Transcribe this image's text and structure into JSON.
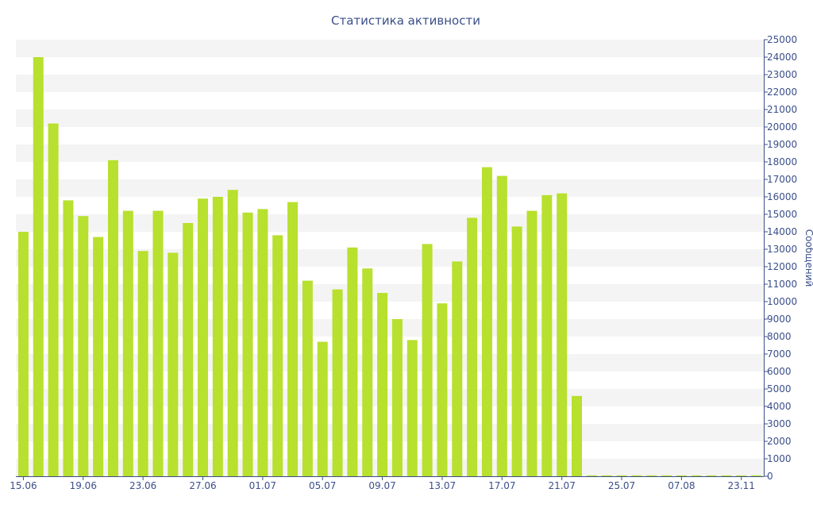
{
  "chart_data": {
    "type": "bar",
    "title": "Статистика активности",
    "xlabel": "",
    "ylabel": "Сообщений",
    "ylim": [
      0,
      25000
    ],
    "yticks": [
      0,
      1000,
      2000,
      3000,
      4000,
      5000,
      6000,
      7000,
      8000,
      9000,
      10000,
      11000,
      12000,
      13000,
      14000,
      15000,
      16000,
      17000,
      18000,
      19000,
      20000,
      21000,
      22000,
      23000,
      24000,
      25000
    ],
    "grid": "horizontal-bands",
    "y_axis_position": "right",
    "bar_color": "#b8e02e",
    "band_color": "#f4f4f4",
    "axis_color": "#3b4f8a",
    "x_tick_labels": [
      {
        "index": 0,
        "label": "15.06"
      },
      {
        "index": 4,
        "label": "19.06"
      },
      {
        "index": 8,
        "label": "23.06"
      },
      {
        "index": 12,
        "label": "27.06"
      },
      {
        "index": 16,
        "label": "01.07"
      },
      {
        "index": 20,
        "label": "05.07"
      },
      {
        "index": 24,
        "label": "09.07"
      },
      {
        "index": 28,
        "label": "13.07"
      },
      {
        "index": 32,
        "label": "17.07"
      },
      {
        "index": 36,
        "label": "21.07"
      },
      {
        "index": 40,
        "label": "25.07"
      },
      {
        "index": 44,
        "label": "07.08"
      },
      {
        "index": 48,
        "label": "23.11"
      }
    ],
    "values": [
      14000,
      24000,
      20200,
      15800,
      14900,
      13700,
      18100,
      15200,
      12900,
      15200,
      12800,
      14500,
      15900,
      16000,
      16400,
      15100,
      15300,
      13800,
      15700,
      11200,
      7700,
      10700,
      13100,
      11900,
      10500,
      9000,
      7800,
      13300,
      9900,
      12300,
      14800,
      17700,
      17200,
      14300,
      15200,
      16100,
      16200,
      4600,
      50,
      50,
      50,
      50,
      50,
      50,
      50,
      50,
      50,
      50,
      50,
      50
    ]
  }
}
